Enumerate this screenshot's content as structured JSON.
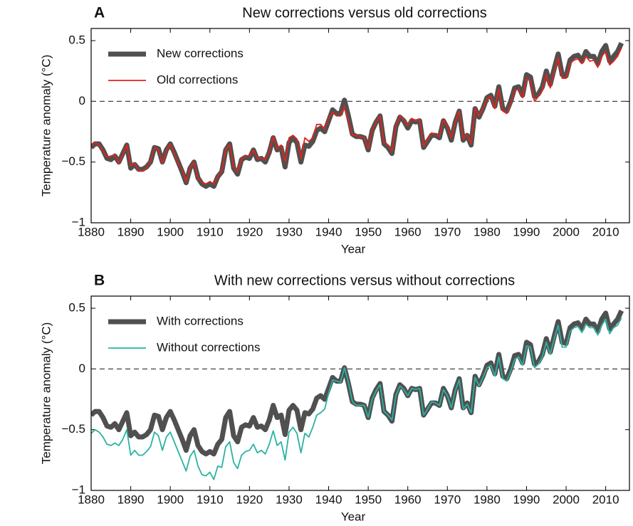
{
  "chart_data": [
    {
      "type": "line",
      "panel_label": "A",
      "title": "New corrections versus old corrections",
      "xlabel": "Year",
      "ylabel": "Temperature anomaly (°C)",
      "x": [
        1880,
        1881,
        1882,
        1883,
        1884,
        1885,
        1886,
        1887,
        1888,
        1889,
        1890,
        1891,
        1892,
        1893,
        1894,
        1895,
        1896,
        1897,
        1898,
        1899,
        1900,
        1901,
        1902,
        1903,
        1904,
        1905,
        1906,
        1907,
        1908,
        1909,
        1910,
        1911,
        1912,
        1913,
        1914,
        1915,
        1916,
        1917,
        1918,
        1919,
        1920,
        1921,
        1922,
        1923,
        1924,
        1925,
        1926,
        1927,
        1928,
        1929,
        1930,
        1931,
        1932,
        1933,
        1934,
        1935,
        1936,
        1937,
        1938,
        1939,
        1940,
        1941,
        1942,
        1943,
        1944,
        1945,
        1946,
        1947,
        1948,
        1949,
        1950,
        1951,
        1952,
        1953,
        1954,
        1955,
        1956,
        1957,
        1958,
        1959,
        1960,
        1961,
        1962,
        1963,
        1964,
        1965,
        1966,
        1967,
        1968,
        1969,
        1970,
        1971,
        1972,
        1973,
        1974,
        1975,
        1976,
        1977,
        1978,
        1979,
        1980,
        1981,
        1982,
        1983,
        1984,
        1985,
        1986,
        1987,
        1988,
        1989,
        1990,
        1991,
        1992,
        1993,
        1994,
        1995,
        1996,
        1997,
        1998,
        1999,
        2000,
        2001,
        2002,
        2003,
        2004,
        2005,
        2006,
        2007,
        2008,
        2009,
        2010,
        2011,
        2012,
        2013,
        2014
      ],
      "series": [
        {
          "name": "New corrections",
          "color": "#505050",
          "values": [
            -0.38,
            -0.35,
            -0.35,
            -0.4,
            -0.47,
            -0.48,
            -0.45,
            -0.5,
            -0.43,
            -0.36,
            -0.55,
            -0.52,
            -0.56,
            -0.56,
            -0.54,
            -0.5,
            -0.38,
            -0.39,
            -0.5,
            -0.4,
            -0.35,
            -0.42,
            -0.5,
            -0.58,
            -0.67,
            -0.55,
            -0.5,
            -0.63,
            -0.68,
            -0.7,
            -0.68,
            -0.7,
            -0.62,
            -0.58,
            -0.4,
            -0.35,
            -0.55,
            -0.6,
            -0.48,
            -0.46,
            -0.47,
            -0.4,
            -0.48,
            -0.47,
            -0.5,
            -0.42,
            -0.3,
            -0.4,
            -0.38,
            -0.54,
            -0.34,
            -0.3,
            -0.34,
            -0.5,
            -0.36,
            -0.37,
            -0.33,
            -0.24,
            -0.22,
            -0.25,
            -0.16,
            -0.07,
            -0.1,
            -0.1,
            0.01,
            -0.12,
            -0.27,
            -0.29,
            -0.29,
            -0.3,
            -0.4,
            -0.24,
            -0.17,
            -0.12,
            -0.35,
            -0.38,
            -0.43,
            -0.21,
            -0.13,
            -0.16,
            -0.22,
            -0.16,
            -0.17,
            -0.16,
            -0.38,
            -0.33,
            -0.28,
            -0.28,
            -0.3,
            -0.16,
            -0.22,
            -0.32,
            -0.17,
            -0.08,
            -0.32,
            -0.28,
            -0.36,
            -0.06,
            -0.13,
            -0.06,
            0.03,
            0.05,
            -0.04,
            0.12,
            -0.06,
            -0.08,
            0.0,
            0.11,
            0.12,
            0.05,
            0.22,
            0.2,
            0.04,
            0.06,
            0.12,
            0.25,
            0.14,
            0.27,
            0.39,
            0.22,
            0.21,
            0.34,
            0.37,
            0.38,
            0.33,
            0.41,
            0.37,
            0.37,
            0.31,
            0.41,
            0.46,
            0.33,
            0.37,
            0.41,
            0.48
          ]
        },
        {
          "name": "Old corrections",
          "color": "#e3231b",
          "values": [
            -0.37,
            -0.34,
            -0.36,
            -0.41,
            -0.46,
            -0.45,
            -0.44,
            -0.51,
            -0.44,
            -0.36,
            -0.53,
            -0.51,
            -0.57,
            -0.57,
            -0.55,
            -0.49,
            -0.38,
            -0.4,
            -0.51,
            -0.41,
            -0.35,
            -0.43,
            -0.51,
            -0.57,
            -0.66,
            -0.55,
            -0.5,
            -0.63,
            -0.67,
            -0.68,
            -0.66,
            -0.68,
            -0.62,
            -0.58,
            -0.4,
            -0.36,
            -0.54,
            -0.58,
            -0.47,
            -0.45,
            -0.45,
            -0.4,
            -0.47,
            -0.47,
            -0.48,
            -0.42,
            -0.29,
            -0.39,
            -0.36,
            -0.5,
            -0.3,
            -0.28,
            -0.31,
            -0.47,
            -0.3,
            -0.33,
            -0.3,
            -0.19,
            -0.19,
            -0.23,
            -0.14,
            -0.09,
            -0.12,
            -0.12,
            -0.04,
            -0.16,
            -0.28,
            -0.28,
            -0.29,
            -0.3,
            -0.39,
            -0.24,
            -0.17,
            -0.12,
            -0.34,
            -0.36,
            -0.41,
            -0.2,
            -0.12,
            -0.15,
            -0.2,
            -0.14,
            -0.16,
            -0.15,
            -0.37,
            -0.31,
            -0.26,
            -0.27,
            -0.29,
            -0.15,
            -0.2,
            -0.3,
            -0.17,
            -0.08,
            -0.31,
            -0.27,
            -0.35,
            -0.06,
            -0.12,
            -0.06,
            0.02,
            0.04,
            -0.06,
            0.1,
            -0.08,
            -0.1,
            -0.02,
            0.09,
            0.1,
            0.03,
            0.19,
            0.17,
            0.0,
            0.04,
            0.09,
            0.22,
            0.11,
            0.25,
            0.36,
            0.19,
            0.19,
            0.31,
            0.34,
            0.35,
            0.31,
            0.37,
            0.33,
            0.34,
            0.28,
            0.37,
            0.41,
            0.3,
            0.33,
            0.37,
            0.44
          ]
        }
      ],
      "xlim": [
        1880,
        2016
      ],
      "xticks": [
        1880,
        1890,
        1900,
        1910,
        1920,
        1930,
        1940,
        1950,
        1960,
        1970,
        1980,
        1990,
        2000,
        2010
      ],
      "ylim": [
        -1,
        0.6
      ],
      "yticks": [
        {
          "value": -1,
          "label": "−1"
        },
        {
          "value": -0.5,
          "label": "−0.5"
        },
        0,
        0.5
      ],
      "reference_line": 0,
      "grid": false,
      "legend": "upper left"
    },
    {
      "type": "line",
      "panel_label": "B",
      "title": "With new corrections versus without corrections",
      "xlabel": "Year",
      "ylabel": "Temperature anomaly (°C)",
      "x": [
        1880,
        1881,
        1882,
        1883,
        1884,
        1885,
        1886,
        1887,
        1888,
        1889,
        1890,
        1891,
        1892,
        1893,
        1894,
        1895,
        1896,
        1897,
        1898,
        1899,
        1900,
        1901,
        1902,
        1903,
        1904,
        1905,
        1906,
        1907,
        1908,
        1909,
        1910,
        1911,
        1912,
        1913,
        1914,
        1915,
        1916,
        1917,
        1918,
        1919,
        1920,
        1921,
        1922,
        1923,
        1924,
        1925,
        1926,
        1927,
        1928,
        1929,
        1930,
        1931,
        1932,
        1933,
        1934,
        1935,
        1936,
        1937,
        1938,
        1939,
        1940,
        1941,
        1942,
        1943,
        1944,
        1945,
        1946,
        1947,
        1948,
        1949,
        1950,
        1951,
        1952,
        1953,
        1954,
        1955,
        1956,
        1957,
        1958,
        1959,
        1960,
        1961,
        1962,
        1963,
        1964,
        1965,
        1966,
        1967,
        1968,
        1969,
        1970,
        1971,
        1972,
        1973,
        1974,
        1975,
        1976,
        1977,
        1978,
        1979,
        1980,
        1981,
        1982,
        1983,
        1984,
        1985,
        1986,
        1987,
        1988,
        1989,
        1990,
        1991,
        1992,
        1993,
        1994,
        1995,
        1996,
        1997,
        1998,
        1999,
        2000,
        2001,
        2002,
        2003,
        2004,
        2005,
        2006,
        2007,
        2008,
        2009,
        2010,
        2011,
        2012,
        2013,
        2014
      ],
      "series": [
        {
          "name": "With corrections",
          "color": "#505050",
          "values": [
            -0.38,
            -0.35,
            -0.35,
            -0.4,
            -0.47,
            -0.48,
            -0.45,
            -0.5,
            -0.43,
            -0.36,
            -0.55,
            -0.52,
            -0.56,
            -0.56,
            -0.54,
            -0.5,
            -0.38,
            -0.39,
            -0.5,
            -0.4,
            -0.35,
            -0.42,
            -0.5,
            -0.58,
            -0.67,
            -0.55,
            -0.5,
            -0.63,
            -0.68,
            -0.7,
            -0.68,
            -0.7,
            -0.62,
            -0.58,
            -0.4,
            -0.35,
            -0.55,
            -0.6,
            -0.48,
            -0.46,
            -0.47,
            -0.4,
            -0.48,
            -0.47,
            -0.5,
            -0.42,
            -0.3,
            -0.4,
            -0.38,
            -0.54,
            -0.34,
            -0.3,
            -0.34,
            -0.5,
            -0.36,
            -0.37,
            -0.33,
            -0.24,
            -0.22,
            -0.25,
            -0.16,
            -0.07,
            -0.1,
            -0.1,
            0.01,
            -0.12,
            -0.27,
            -0.29,
            -0.29,
            -0.3,
            -0.4,
            -0.24,
            -0.17,
            -0.12,
            -0.35,
            -0.38,
            -0.43,
            -0.21,
            -0.13,
            -0.16,
            -0.22,
            -0.16,
            -0.17,
            -0.16,
            -0.38,
            -0.33,
            -0.28,
            -0.28,
            -0.3,
            -0.16,
            -0.22,
            -0.32,
            -0.17,
            -0.08,
            -0.32,
            -0.28,
            -0.36,
            -0.06,
            -0.13,
            -0.06,
            0.03,
            0.05,
            -0.04,
            0.12,
            -0.06,
            -0.08,
            0.0,
            0.11,
            0.12,
            0.05,
            0.22,
            0.2,
            0.04,
            0.06,
            0.12,
            0.25,
            0.14,
            0.27,
            0.39,
            0.22,
            0.21,
            0.34,
            0.37,
            0.38,
            0.33,
            0.41,
            0.37,
            0.37,
            0.31,
            0.41,
            0.46,
            0.33,
            0.37,
            0.41,
            0.48
          ]
        },
        {
          "name": "Without corrections",
          "color": "#2ab3a3",
          "values": [
            -0.53,
            -0.5,
            -0.52,
            -0.56,
            -0.62,
            -0.63,
            -0.61,
            -0.63,
            -0.58,
            -0.5,
            -0.71,
            -0.67,
            -0.71,
            -0.71,
            -0.68,
            -0.64,
            -0.52,
            -0.55,
            -0.67,
            -0.56,
            -0.52,
            -0.6,
            -0.68,
            -0.76,
            -0.84,
            -0.72,
            -0.67,
            -0.8,
            -0.87,
            -0.88,
            -0.85,
            -0.91,
            -0.8,
            -0.81,
            -0.64,
            -0.6,
            -0.77,
            -0.82,
            -0.71,
            -0.68,
            -0.67,
            -0.62,
            -0.69,
            -0.67,
            -0.7,
            -0.62,
            -0.51,
            -0.63,
            -0.6,
            -0.75,
            -0.52,
            -0.48,
            -0.53,
            -0.69,
            -0.53,
            -0.56,
            -0.48,
            -0.38,
            -0.36,
            -0.33,
            -0.2,
            -0.09,
            -0.1,
            -0.11,
            0.01,
            -0.11,
            -0.27,
            -0.3,
            -0.3,
            -0.3,
            -0.4,
            -0.25,
            -0.18,
            -0.13,
            -0.35,
            -0.38,
            -0.42,
            -0.22,
            -0.14,
            -0.17,
            -0.22,
            -0.16,
            -0.17,
            -0.16,
            -0.38,
            -0.33,
            -0.27,
            -0.28,
            -0.3,
            -0.17,
            -0.22,
            -0.32,
            -0.18,
            -0.09,
            -0.33,
            -0.29,
            -0.36,
            -0.07,
            -0.14,
            -0.07,
            0.01,
            0.03,
            -0.06,
            0.1,
            -0.08,
            -0.1,
            -0.02,
            0.08,
            0.1,
            0.03,
            0.19,
            0.18,
            0.01,
            0.04,
            0.1,
            0.22,
            0.12,
            0.25,
            0.36,
            0.18,
            0.18,
            0.31,
            0.34,
            0.35,
            0.3,
            0.37,
            0.34,
            0.34,
            0.28,
            0.36,
            0.41,
            0.29,
            0.34,
            0.36,
            0.42
          ]
        }
      ],
      "xlim": [
        1880,
        2016
      ],
      "xticks": [
        1880,
        1890,
        1900,
        1910,
        1920,
        1930,
        1940,
        1950,
        1960,
        1970,
        1980,
        1990,
        2000,
        2010
      ],
      "ylim": [
        -1,
        0.6
      ],
      "yticks": [
        {
          "value": -1,
          "label": "−1"
        },
        {
          "value": -0.5,
          "label": "−0.5"
        },
        0,
        0.5
      ],
      "reference_line": 0,
      "grid": false,
      "legend": "upper left"
    }
  ]
}
